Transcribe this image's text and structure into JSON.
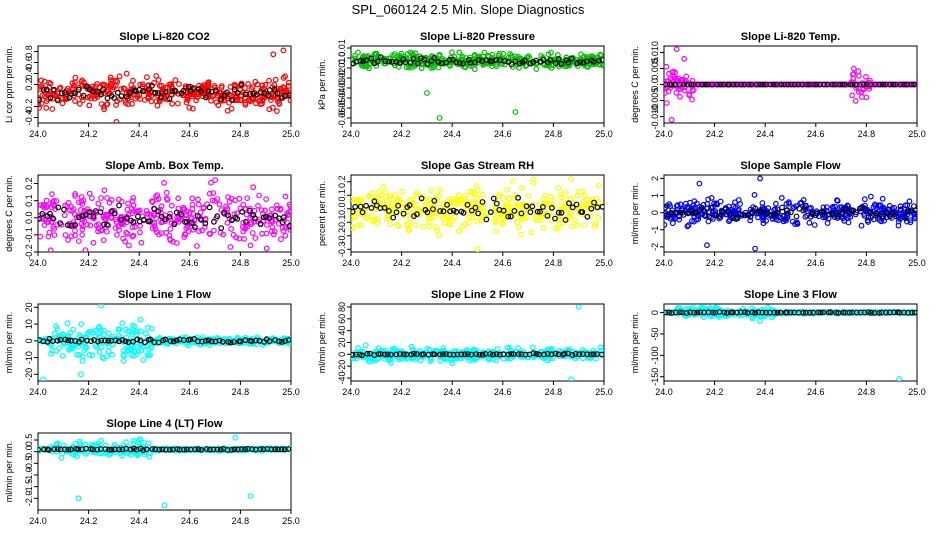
{
  "figure_title": "SPL_060124  2.5 Min. Slope Diagnostics",
  "chart_data": [
    {
      "type": "scatter",
      "title": "Slope Li-820 CO2",
      "ylabel": "Li cor ppm per min.",
      "xlim": [
        24.0,
        25.0
      ],
      "ylim": [
        -0.5,
        0.9
      ],
      "xticks": [
        "24.0",
        "24.2",
        "24.4",
        "24.6",
        "24.8",
        "25.0"
      ],
      "yticks": [
        "-0.4",
        "-0.2",
        "0.2",
        "0.4",
        "0.6",
        "0.8"
      ],
      "color": "#ff0000",
      "center": 0.05,
      "spread": 0.45,
      "outliers": [
        [
          24.31,
          -0.48
        ],
        [
          24.93,
          0.75
        ],
        [
          24.97,
          0.82
        ]
      ]
    },
    {
      "type": "scatter",
      "title": "Slope Li-820 Pressure",
      "ylabel": "kPa per min.",
      "xlim": [
        24.0,
        25.0
      ],
      "ylim": [
        -0.065,
        0.012
      ],
      "xticks": [
        "24.0",
        "24.2",
        "24.4",
        "24.6",
        "24.8",
        "25.0"
      ],
      "yticks": [
        "-0.06",
        "-0.05",
        "-0.04",
        "-0.03",
        "-0.02",
        "-0.01",
        "0.0",
        "0.01"
      ],
      "color": "#00c000",
      "center": -0.003,
      "spread": 0.012,
      "outliers": [
        [
          24.35,
          -0.06
        ],
        [
          24.65,
          -0.054
        ],
        [
          24.3,
          -0.035
        ]
      ]
    },
    {
      "type": "scatter",
      "title": "Slope Li-820 Temp.",
      "ylabel": "degrees C per min.",
      "xlim": [
        24.0,
        25.0
      ],
      "ylim": [
        -0.012,
        0.012
      ],
      "xticks": [
        "24.0",
        "24.2",
        "24.4",
        "24.6",
        "24.8",
        "25.0"
      ],
      "yticks": [
        "-0.010",
        "-0.005",
        "0.0",
        "0.005",
        "0.010"
      ],
      "color": "#ff00ff",
      "center": 0.0,
      "spread": 0.0,
      "outliers": [
        [
          24.05,
          0.011
        ],
        [
          24.03,
          -0.011
        ],
        [
          24.08,
          0.008
        ],
        [
          24.75,
          0.005
        ],
        [
          24.8,
          -0.004
        ]
      ]
    },
    {
      "type": "scatter",
      "title": "Slope Amb. Box Temp.",
      "ylabel": "degrees C per min.",
      "xlim": [
        24.0,
        25.0
      ],
      "ylim": [
        -0.2,
        0.25
      ],
      "xticks": [
        "24.0",
        "24.2",
        "24.4",
        "24.6",
        "24.8",
        "25.0"
      ],
      "yticks": [
        "-0.2",
        "-0.1",
        "0.0",
        "0.1",
        "0.2"
      ],
      "color": "#ff00ff",
      "center": 0.0,
      "spread": 0.25,
      "outliers": [
        [
          24.7,
          0.22
        ],
        [
          24.05,
          -0.19
        ]
      ]
    },
    {
      "type": "scatter",
      "title": "Slope Gas Stream RH",
      "ylabel": "percent per min.",
      "xlim": [
        24.0,
        25.0
      ],
      "ylim": [
        -0.32,
        0.25
      ],
      "xticks": [
        "24.0",
        "24.2",
        "24.4",
        "24.6",
        "24.8",
        "25.0"
      ],
      "yticks": [
        "-0.3",
        "-0.2",
        "-0.1",
        "0.0",
        "0.1",
        "0.2"
      ],
      "color": "#ffff00",
      "center": 0.0,
      "spread": 0.26,
      "outliers": [
        [
          24.5,
          -0.3
        ],
        [
          24.87,
          0.22
        ]
      ]
    },
    {
      "type": "scatter",
      "title": "Slope Sample Flow",
      "ylabel": "ml/min per min.",
      "xlim": [
        24.0,
        25.0
      ],
      "ylim": [
        -2.3,
        2.2
      ],
      "xticks": [
        "24.0",
        "24.2",
        "24.4",
        "24.6",
        "24.8",
        "25.0"
      ],
      "yticks": [
        "-2",
        "-1",
        "0",
        "1",
        "2"
      ],
      "color": "#0000ff",
      "center": 0.0,
      "spread": 1.2,
      "outliers": [
        [
          24.36,
          -2.1
        ],
        [
          24.38,
          2.0
        ],
        [
          24.14,
          1.7
        ],
        [
          24.17,
          -1.9
        ]
      ]
    },
    {
      "type": "scatter",
      "title": "Slope Line 1 Flow",
      "ylabel": "ml/min per min.",
      "xlim": [
        24.0,
        25.0
      ],
      "ylim": [
        -24,
        22
      ],
      "xticks": [
        "24.0",
        "24.2",
        "24.4",
        "24.6",
        "24.8",
        "25.0"
      ],
      "yticks": [
        "-20",
        "-10",
        "0",
        "10",
        "20"
      ],
      "color": "#00ffff",
      "center": 0.0,
      "spread": 14,
      "outliers": [
        [
          24.02,
          -23
        ],
        [
          24.25,
          21
        ],
        [
          24.17,
          -20
        ]
      ]
    },
    {
      "type": "scatter",
      "title": "Slope Line 2 Flow",
      "ylabel": "ml/min per min.",
      "xlim": [
        24.0,
        25.0
      ],
      "ylim": [
        -45,
        85
      ],
      "xticks": [
        "24.0",
        "24.2",
        "24.4",
        "24.6",
        "24.8",
        "25.0"
      ],
      "yticks": [
        "-40",
        "-20",
        "0",
        "20",
        "40",
        "60",
        "80"
      ],
      "color": "#00ffff",
      "center": 0.0,
      "spread": 18,
      "outliers": [
        [
          24.9,
          80
        ],
        [
          24.87,
          -42
        ],
        [
          24.4,
          -15
        ]
      ]
    },
    {
      "type": "scatter",
      "title": "Slope Line 3 Flow",
      "ylabel": "ml/min per min.",
      "xlim": [
        24.0,
        25.0
      ],
      "ylim": [
        -160,
        20
      ],
      "xticks": [
        "24.0",
        "24.2",
        "24.4",
        "24.6",
        "24.8",
        "25.0"
      ],
      "yticks": [
        "-150",
        "-100",
        "-50",
        "0"
      ],
      "color": "#00ffff",
      "center": 0.0,
      "spread": 15,
      "outliers": [
        [
          24.93,
          -155
        ],
        [
          24.38,
          -20
        ]
      ]
    },
    {
      "type": "scatter",
      "title": "Slope Line 4 (LT) Flow",
      "ylabel": "ml/min per min.",
      "xlim": [
        24.0,
        25.0
      ],
      "ylim": [
        -2.5,
        0.8
      ],
      "xticks": [
        "24.0",
        "24.2",
        "24.4",
        "24.6",
        "24.8",
        "25.0"
      ],
      "yticks": [
        "-2.0",
        "-1.5",
        "-1.0",
        "-0.5",
        "0.0",
        "0.5"
      ],
      "color": "#00ffff",
      "center": 0.1,
      "spread": 0.4,
      "outliers": [
        [
          24.16,
          -2.0
        ],
        [
          24.5,
          -2.3
        ],
        [
          24.84,
          -1.9
        ],
        [
          24.78,
          0.6
        ]
      ]
    }
  ]
}
